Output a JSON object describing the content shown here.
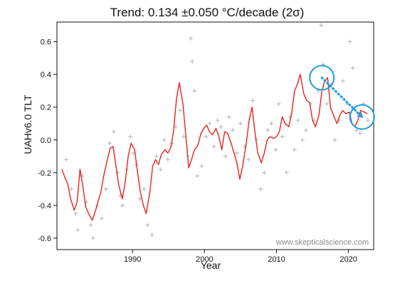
{
  "chart_data": {
    "type": "line",
    "title": "Trend: 0.134 ±0.050 °C/decade (2σ)",
    "xlabel": "Year",
    "ylabel": "UAHv6.0 TLT",
    "credit": "www.skepticalscience.com",
    "xlim": [
      1979.5,
      2023.5
    ],
    "ylim": [
      -0.67,
      0.72
    ],
    "x_ticks": [
      1990,
      2000,
      2010,
      2020
    ],
    "y_ticks": [
      -0.6,
      -0.4,
      -0.2,
      0.0,
      0.2,
      0.4,
      0.6
    ],
    "y_tick_labels": [
      "-0.6",
      "-0.4",
      "-0.2",
      "0.0",
      "0.2",
      "0.4",
      "0.6"
    ],
    "colors": {
      "smoothed": "#e8231f",
      "monthly": "#b9b9b9",
      "annotation": "#1a9fe0",
      "frame": "#111111"
    },
    "series": [
      {
        "style": "line",
        "x": [
          1980.2,
          1980.6,
          1981.0,
          1981.4,
          1981.9,
          1982.3,
          1982.7,
          1983.1,
          1983.5,
          1983.9,
          1984.4,
          1984.8,
          1985.2,
          1985.6,
          1986.0,
          1986.5,
          1986.9,
          1987.3,
          1987.7,
          1988.1,
          1988.6,
          1989.0,
          1989.4,
          1989.8,
          1990.3,
          1990.7,
          1991.1,
          1991.5,
          1991.9,
          1992.4,
          1992.8,
          1993.2,
          1993.6,
          1994.0,
          1994.5,
          1994.9,
          1995.3,
          1995.7,
          1996.1,
          1996.5,
          1997.0,
          1997.4,
          1997.8,
          1998.2,
          1998.6,
          1999.1,
          1999.5,
          1999.9,
          2000.3,
          2000.7,
          2001.1,
          2001.6,
          2002.0,
          2002.4,
          2002.8,
          2003.2,
          2003.7,
          2004.1,
          2004.5,
          2004.9,
          2005.3,
          2005.8,
          2006.2,
          2006.6,
          2007.0,
          2007.4,
          2007.9,
          2008.3,
          2008.7,
          2009.1,
          2009.6,
          2010.0,
          2010.4,
          2010.8,
          2011.2,
          2011.7,
          2012.1,
          2012.5,
          2012.9,
          2013.3,
          2013.8,
          2014.2,
          2014.6,
          2015.0,
          2015.4,
          2015.9,
          2016.3,
          2016.7,
          2017.1,
          2017.5,
          2018.0,
          2018.4,
          2018.8,
          2019.2,
          2019.6,
          2020.1,
          2020.5,
          2020.9,
          2021.3,
          2021.7,
          2022.2,
          2022.6
        ],
        "y": [
          -0.18,
          -0.23,
          -0.27,
          -0.36,
          -0.43,
          -0.38,
          -0.18,
          -0.28,
          -0.41,
          -0.45,
          -0.49,
          -0.44,
          -0.38,
          -0.32,
          -0.22,
          -0.12,
          -0.05,
          -0.04,
          -0.16,
          -0.28,
          -0.36,
          -0.25,
          -0.1,
          -0.02,
          -0.06,
          -0.2,
          -0.32,
          -0.4,
          -0.45,
          -0.32,
          -0.16,
          -0.12,
          -0.15,
          -0.09,
          -0.06,
          -0.08,
          -0.05,
          0.05,
          0.25,
          0.35,
          0.22,
          0.03,
          -0.17,
          -0.12,
          -0.06,
          -0.03,
          0.04,
          0.07,
          0.09,
          0.05,
          0.03,
          0.07,
          0.02,
          -0.06,
          0.05,
          0.04,
          -0.02,
          -0.08,
          -0.14,
          -0.24,
          -0.16,
          -0.02,
          0.12,
          0.2,
          0.05,
          -0.08,
          -0.14,
          -0.08,
          0.0,
          0.02,
          0.01,
          0.02,
          0.05,
          0.14,
          0.1,
          0.08,
          0.16,
          0.3,
          0.34,
          0.4,
          0.28,
          0.24,
          0.23,
          0.12,
          0.08,
          0.15,
          0.3,
          0.36,
          0.38,
          0.2,
          0.14,
          0.1,
          0.15,
          0.18,
          0.16,
          0.17,
          0.1,
          0.08,
          0.12,
          0.18,
          0.17,
          0.16
        ]
      },
      {
        "style": "scatter",
        "x": [
          1980.8,
          1981.5,
          1982.1,
          1982.4,
          1983.0,
          1983.6,
          1984.2,
          1984.5,
          1985.1,
          1985.7,
          1986.3,
          1986.8,
          1987.4,
          1987.9,
          1988.3,
          1988.6,
          1989.2,
          1989.7,
          1990.1,
          1990.5,
          1991.0,
          1991.6,
          1992.1,
          1992.7,
          1993.3,
          1993.9,
          1994.4,
          1994.9,
          1995.5,
          1996.0,
          1996.6,
          1997.1,
          1997.7,
          1998.1,
          1998.3,
          1998.6,
          1999.0,
          1999.6,
          2000.2,
          2000.7,
          2001.3,
          2001.8,
          2002.3,
          2002.9,
          2003.4,
          2003.9,
          2004.5,
          2005.0,
          2005.6,
          2006.1,
          2006.7,
          2007.2,
          2007.8,
          2008.3,
          2008.8,
          2009.3,
          2009.9,
          2010.3,
          2010.8,
          2011.4,
          2011.9,
          2012.5,
          2013.0,
          2013.6,
          2014.1,
          2014.7,
          2015.2,
          2015.8,
          2016.2,
          2016.5,
          2017.0,
          2017.6,
          2018.1,
          2018.7,
          2019.2,
          2019.8,
          2020.2,
          2020.6,
          2021.1,
          2021.6,
          2022.1,
          2022.7
        ],
        "y": [
          -0.12,
          -0.3,
          -0.45,
          -0.55,
          -0.22,
          -0.38,
          -0.52,
          -0.6,
          -0.4,
          -0.48,
          -0.3,
          -0.02,
          0.05,
          -0.2,
          -0.34,
          -0.4,
          -0.18,
          0.02,
          -0.08,
          -0.15,
          -0.36,
          -0.3,
          -0.52,
          -0.58,
          -0.1,
          -0.18,
          0.0,
          -0.12,
          -0.02,
          0.08,
          0.18,
          0.02,
          -0.1,
          0.62,
          0.48,
          0.3,
          -0.22,
          -0.16,
          0.02,
          0.1,
          -0.04,
          0.12,
          0.08,
          -0.1,
          0.14,
          0.06,
          -0.08,
          0.1,
          -0.04,
          -0.12,
          0.24,
          0.0,
          -0.3,
          -0.2,
          0.06,
          0.1,
          -0.06,
          0.22,
          0.02,
          -0.2,
          0.14,
          -0.06,
          0.12,
          0.0,
          0.06,
          0.22,
          0.12,
          0.3,
          0.7,
          0.46,
          0.22,
          0.34,
          0.0,
          0.12,
          0.36,
          0.22,
          0.6,
          0.44,
          0.06,
          0.04,
          0.22,
          0.12
        ]
      }
    ],
    "annotations": [
      {
        "type": "circle",
        "x": 2016.3,
        "y": 0.38
      },
      {
        "type": "circle",
        "x": 2021.9,
        "y": 0.14
      },
      {
        "type": "dotted-arrow",
        "from": [
          2016.3,
          0.38
        ],
        "to": [
          2021.9,
          0.14
        ]
      }
    ]
  }
}
